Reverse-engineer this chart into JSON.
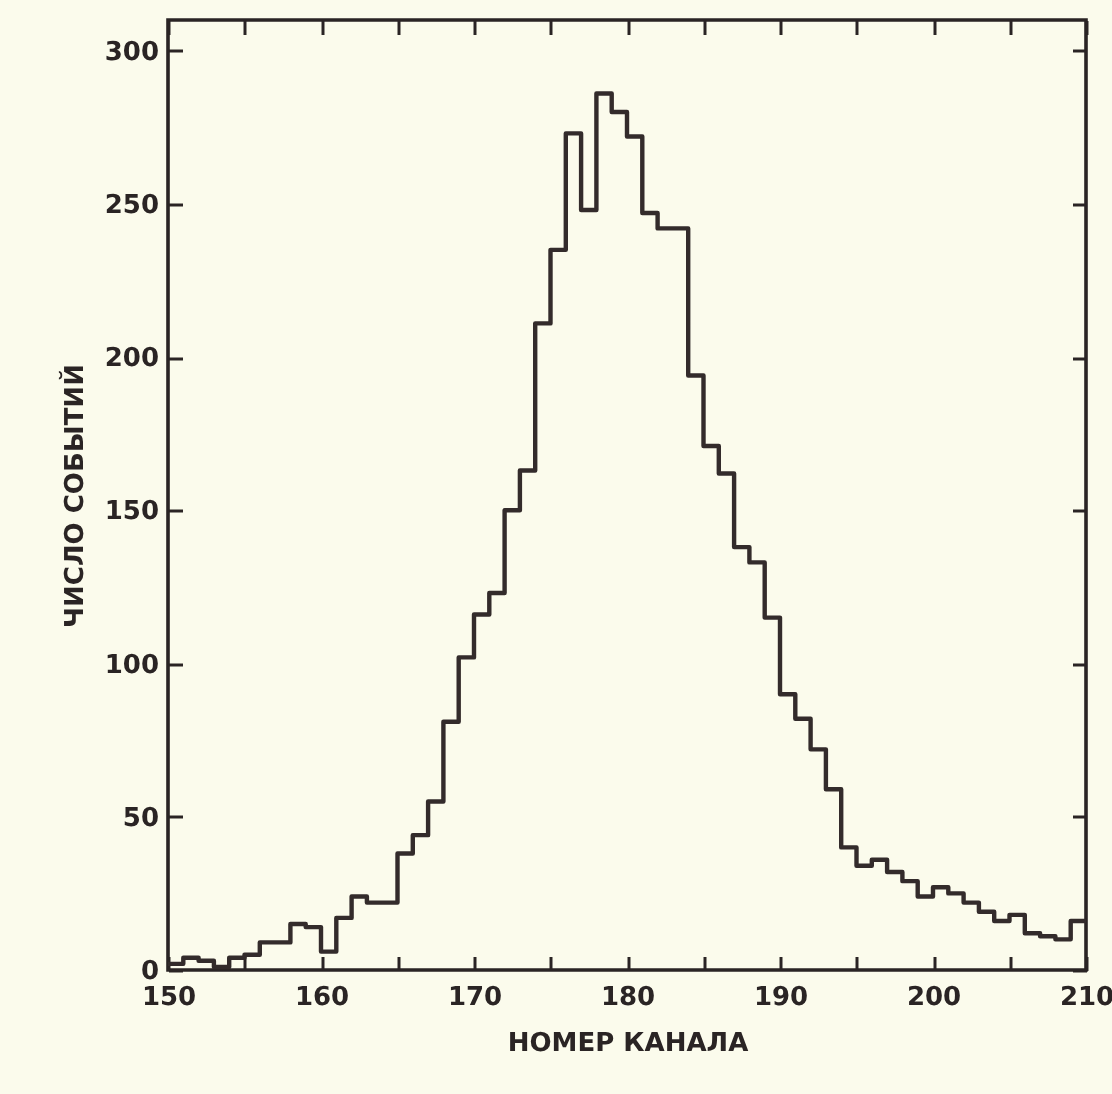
{
  "chart_data": {
    "type": "histogram",
    "xlabel": "НОМЕР КАНАЛА",
    "ylabel": "ЧИСЛО СОБЫТИЙ",
    "bins": [
      150,
      151,
      152,
      153,
      154,
      155,
      156,
      157,
      158,
      159,
      160,
      161,
      162,
      163,
      164,
      165,
      166,
      167,
      168,
      169,
      170,
      171,
      172,
      173,
      174,
      175,
      176,
      177,
      178,
      179,
      180,
      181,
      182,
      183,
      184,
      185,
      186,
      187,
      188,
      189,
      190,
      191,
      192,
      193,
      194,
      195,
      196,
      197,
      198,
      199,
      200,
      201,
      202,
      203,
      204,
      205,
      206,
      207,
      208,
      209,
      210
    ],
    "values": [
      2,
      4,
      3,
      1,
      4,
      5,
      9,
      9,
      15,
      14,
      6,
      17,
      24,
      22,
      22,
      38,
      44,
      55,
      81,
      102,
      116,
      123,
      150,
      163,
      211,
      235,
      273,
      248,
      286,
      280,
      272,
      247,
      242,
      242,
      194,
      171,
      162,
      138,
      133,
      115,
      90,
      82,
      72,
      59,
      40,
      34,
      36,
      32,
      29,
      24,
      27,
      25,
      22,
      19,
      16,
      18,
      12,
      11,
      10,
      16
    ],
    "color": "#332b2b",
    "xlim": [
      150,
      210
    ],
    "xticks": [
      150,
      {
        "value": 155,
        "label": null
      },
      160,
      {
        "value": 165,
        "label": null
      },
      170,
      {
        "value": 175,
        "label": null
      },
      180,
      {
        "value": 185,
        "label": null
      },
      190,
      {
        "value": 195,
        "label": null
      },
      200,
      {
        "value": 205,
        "label": null
      },
      210
    ],
    "ylim": [
      0,
      310
    ],
    "yticks": [
      0,
      50,
      100,
      150,
      200,
      250,
      300
    ],
    "grid": false
  }
}
